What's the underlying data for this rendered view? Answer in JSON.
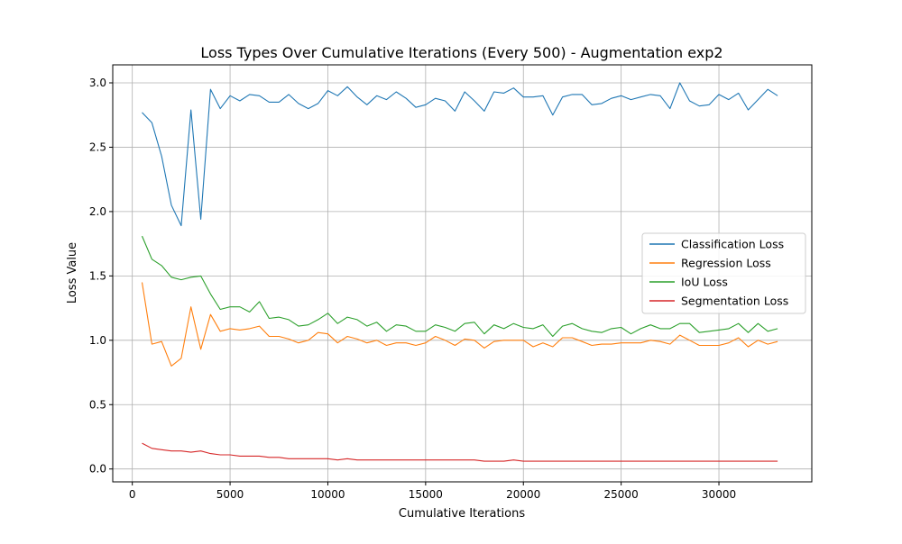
{
  "chart_data": {
    "type": "line",
    "title": "Loss Types Over Cumulative Iterations (Every 500) - Augmentation exp2",
    "xlabel": "Cumulative Iterations",
    "ylabel": "Loss Value",
    "xlim": [
      -1000,
      34750
    ],
    "ylim": [
      -0.1,
      3.14
    ],
    "xticks": [
      0,
      5000,
      10000,
      15000,
      20000,
      25000,
      30000
    ],
    "xtick_labels": [
      "0",
      "5000",
      "10000",
      "15000",
      "20000",
      "25000",
      "30000"
    ],
    "yticks": [
      0.0,
      0.5,
      1.0,
      1.5,
      2.0,
      2.5,
      3.0
    ],
    "ytick_labels": [
      "0.0",
      "0.5",
      "1.0",
      "1.5",
      "2.0",
      "2.5",
      "3.0"
    ],
    "grid": true,
    "legend_position": "center-right",
    "x": [
      500,
      1000,
      1500,
      2000,
      2500,
      3000,
      3500,
      4000,
      4500,
      5000,
      5500,
      6000,
      6500,
      7000,
      7500,
      8000,
      8500,
      9000,
      9500,
      10000,
      10500,
      11000,
      11500,
      12000,
      12500,
      13000,
      13500,
      14000,
      14500,
      15000,
      15500,
      16000,
      16500,
      17000,
      17500,
      18000,
      18500,
      19000,
      19500,
      20000,
      20500,
      21000,
      21500,
      22000,
      22500,
      23000,
      23500,
      24000,
      24500,
      25000,
      25500,
      26000,
      26500,
      27000,
      27500,
      28000,
      28500,
      29000,
      29500,
      30000,
      30500,
      31000,
      31500,
      32000,
      32500,
      33000
    ],
    "series": [
      {
        "name": "Classification Loss",
        "color": "#1f77b4",
        "values": [
          2.77,
          2.69,
          2.43,
          2.05,
          1.89,
          2.79,
          1.94,
          2.95,
          2.8,
          2.9,
          2.86,
          2.91,
          2.9,
          2.85,
          2.85,
          2.91,
          2.84,
          2.8,
          2.84,
          2.94,
          2.9,
          2.97,
          2.89,
          2.83,
          2.9,
          2.87,
          2.93,
          2.88,
          2.81,
          2.83,
          2.88,
          2.86,
          2.78,
          2.93,
          2.86,
          2.78,
          2.93,
          2.92,
          2.96,
          2.89,
          2.89,
          2.9,
          2.75,
          2.89,
          2.91,
          2.91,
          2.83,
          2.84,
          2.88,
          2.9,
          2.87,
          2.89,
          2.91,
          2.9,
          2.8,
          3.0,
          2.86,
          2.82,
          2.83,
          2.91,
          2.87,
          2.92,
          2.79,
          2.87,
          2.95,
          2.9
        ]
      },
      {
        "name": "Regression Loss",
        "color": "#ff7f0e",
        "values": [
          1.45,
          0.97,
          0.99,
          0.8,
          0.86,
          1.26,
          0.93,
          1.2,
          1.07,
          1.09,
          1.08,
          1.09,
          1.11,
          1.03,
          1.03,
          1.01,
          0.98,
          1.0,
          1.06,
          1.05,
          0.98,
          1.03,
          1.01,
          0.98,
          1.0,
          0.96,
          0.98,
          0.98,
          0.96,
          0.98,
          1.03,
          1.0,
          0.96,
          1.01,
          1.0,
          0.94,
          0.99,
          1.0,
          1.0,
          1.0,
          0.95,
          0.98,
          0.95,
          1.02,
          1.02,
          0.99,
          0.96,
          0.97,
          0.97,
          0.98,
          0.98,
          0.98,
          1.0,
          0.99,
          0.97,
          1.04,
          1.0,
          0.96,
          0.96,
          0.96,
          0.98,
          1.02,
          0.95,
          1.0,
          0.97,
          0.99
        ]
      },
      {
        "name": "IoU Loss",
        "color": "#2ca02c",
        "values": [
          1.81,
          1.63,
          1.58,
          1.49,
          1.47,
          1.49,
          1.5,
          1.36,
          1.24,
          1.26,
          1.26,
          1.22,
          1.3,
          1.17,
          1.18,
          1.16,
          1.11,
          1.12,
          1.16,
          1.21,
          1.13,
          1.18,
          1.16,
          1.11,
          1.14,
          1.07,
          1.12,
          1.11,
          1.07,
          1.07,
          1.12,
          1.1,
          1.07,
          1.13,
          1.14,
          1.05,
          1.12,
          1.09,
          1.13,
          1.1,
          1.09,
          1.12,
          1.03,
          1.11,
          1.13,
          1.09,
          1.07,
          1.06,
          1.09,
          1.1,
          1.05,
          1.09,
          1.12,
          1.09,
          1.09,
          1.13,
          1.13,
          1.06,
          1.07,
          1.08,
          1.09,
          1.13,
          1.06,
          1.13,
          1.07,
          1.09
        ]
      },
      {
        "name": "Segmentation Loss",
        "color": "#d62728",
        "values": [
          0.2,
          0.16,
          0.15,
          0.14,
          0.14,
          0.13,
          0.14,
          0.12,
          0.11,
          0.11,
          0.1,
          0.1,
          0.1,
          0.09,
          0.09,
          0.08,
          0.08,
          0.08,
          0.08,
          0.08,
          0.07,
          0.08,
          0.07,
          0.07,
          0.07,
          0.07,
          0.07,
          0.07,
          0.07,
          0.07,
          0.07,
          0.07,
          0.07,
          0.07,
          0.07,
          0.06,
          0.06,
          0.06,
          0.07,
          0.06,
          0.06,
          0.06,
          0.06,
          0.06,
          0.06,
          0.06,
          0.06,
          0.06,
          0.06,
          0.06,
          0.06,
          0.06,
          0.06,
          0.06,
          0.06,
          0.06,
          0.06,
          0.06,
          0.06,
          0.06,
          0.06,
          0.06,
          0.06,
          0.06,
          0.06,
          0.06
        ]
      }
    ]
  }
}
